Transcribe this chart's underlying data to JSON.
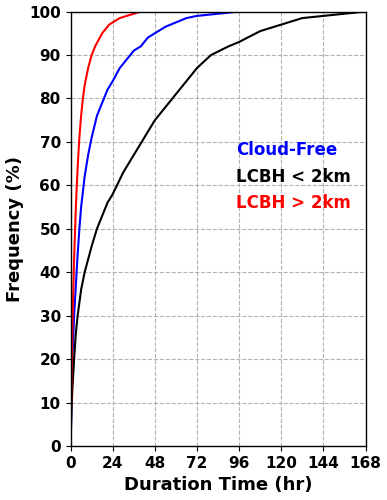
{
  "title": "",
  "xlabel": "Duration Time (hr)",
  "ylabel": "Frequency (%)",
  "xlim": [
    0,
    168
  ],
  "ylim": [
    0,
    100
  ],
  "xticks": [
    0,
    24,
    48,
    72,
    96,
    120,
    144,
    168
  ],
  "yticks": [
    0,
    10,
    20,
    30,
    40,
    50,
    60,
    70,
    80,
    90,
    100
  ],
  "grid_color": "#aaaaaa",
  "background_color": "#ffffff",
  "legend_labels": [
    "Cloud-Free",
    "LCBH < 2km",
    "LCBH > 2km"
  ],
  "legend_colors": [
    "#0000ff",
    "#000000",
    "#ff0000"
  ],
  "line_width": 1.5,
  "xlabel_fontsize": 13,
  "ylabel_fontsize": 13,
  "tick_fontsize": 11,
  "legend_fontsize": 12,
  "cloud_free_x": [
    0,
    0.5,
    1,
    2,
    3,
    4,
    5,
    6,
    8,
    10,
    12,
    15,
    18,
    21,
    24,
    28,
    32,
    36,
    40,
    44,
    48,
    54,
    60,
    66,
    72,
    84,
    96,
    108,
    120,
    144,
    168
  ],
  "cloud_free_y": [
    0,
    10,
    20,
    30,
    37,
    44,
    50,
    55,
    62,
    67,
    71,
    76,
    79,
    82,
    84,
    87,
    89,
    91,
    92,
    94,
    95,
    96.5,
    97.5,
    98.5,
    99,
    99.5,
    100,
    100,
    100,
    100,
    100
  ],
  "lcbh_low_x": [
    0,
    0.5,
    1,
    2,
    3,
    4,
    5,
    6,
    7,
    8,
    10,
    12,
    15,
    18,
    21,
    24,
    30,
    36,
    42,
    48,
    54,
    60,
    66,
    72,
    80,
    90,
    96,
    108,
    120,
    132,
    144,
    156,
    168
  ],
  "lcbh_low_y": [
    0,
    8,
    13,
    20,
    26,
    30,
    33,
    36,
    38,
    40,
    43,
    46,
    50,
    53,
    56,
    58,
    63,
    67,
    71,
    75,
    78,
    81,
    84,
    87,
    90,
    92,
    93,
    95.5,
    97,
    98.5,
    99,
    99.5,
    100
  ],
  "lcbh_high_x": [
    0,
    0.5,
    1,
    2,
    3,
    4,
    5,
    6,
    7,
    8,
    10,
    12,
    14,
    16,
    18,
    20,
    22,
    24,
    28,
    32,
    36,
    40,
    44,
    48,
    54,
    60,
    66,
    72,
    96,
    120,
    144,
    168
  ],
  "lcbh_high_y": [
    0,
    15,
    27,
    43,
    55,
    64,
    71,
    76,
    80,
    83,
    87,
    90,
    92,
    93.5,
    95,
    96,
    97,
    97.5,
    98.5,
    99,
    99.5,
    100,
    100,
    100,
    100,
    100,
    100,
    100,
    100,
    100,
    100,
    100
  ]
}
